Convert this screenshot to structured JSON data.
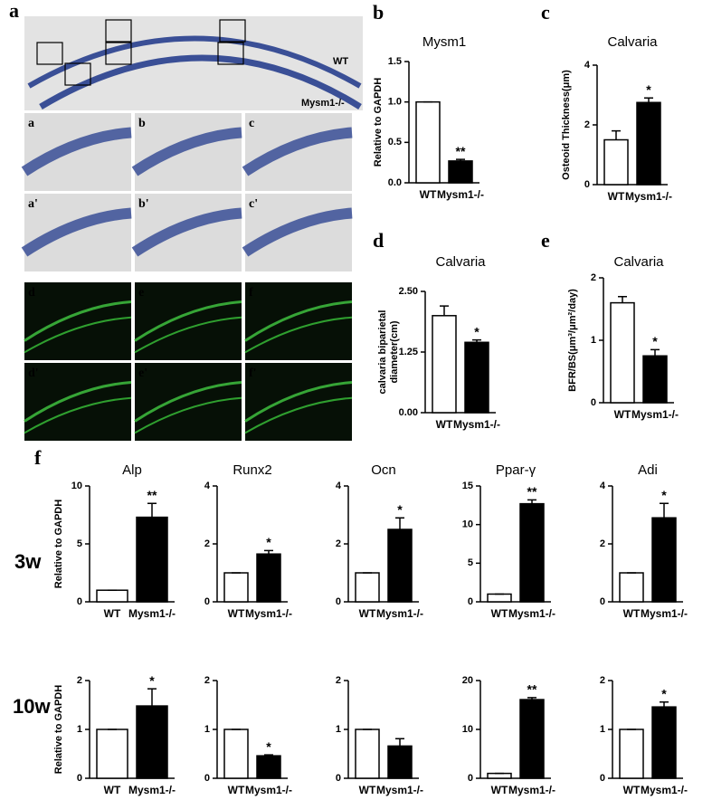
{
  "panel_labels": [
    "a",
    "b",
    "c",
    "d",
    "e",
    "f"
  ],
  "row_labels": [
    "3w",
    "10w"
  ],
  "images": {
    "strip_labels": [
      "WT",
      "Mysm1-/-"
    ],
    "tiles": [
      "a",
      "b",
      "c",
      "a'",
      "b'",
      "c'",
      "d",
      "e",
      "f",
      "d'",
      "e'",
      "f'"
    ]
  },
  "chart_data": [
    {
      "type": "bar",
      "title": "Mysm1",
      "ylabel": "Relative to GAPDH",
      "categories": [
        "WT",
        "Mysm1-/-"
      ],
      "values": [
        1.0,
        0.27
      ],
      "errors": [
        0,
        0.02
      ],
      "colors": [
        "#ffffff",
        "#000000"
      ],
      "annotation": "**",
      "ylim": [
        0,
        1.5
      ],
      "yticks": [
        {
          "value": 0,
          "label": "0.0"
        },
        {
          "value": 0.5,
          "label": "0.5"
        },
        {
          "value": 1,
          "label": "1.0"
        },
        {
          "value": 1.5,
          "label": "1.5"
        }
      ]
    },
    {
      "type": "bar",
      "title": "Calvaria",
      "ylabel": "Osteoid Thickness(μm)",
      "categories": [
        "WT",
        "Mysm1-/-"
      ],
      "values": [
        1.5,
        2.75
      ],
      "errors": [
        0.3,
        0.15
      ],
      "colors": [
        "#ffffff",
        "#000000"
      ],
      "annotation": "*",
      "ylim": [
        0,
        4
      ],
      "yticks": [
        0,
        2,
        4
      ]
    },
    {
      "type": "bar",
      "title": "Calvaria",
      "ylabel": [
        "calvaria biparietal",
        "diameter(cm)"
      ],
      "categories": [
        "WT",
        "Mysm1-/-"
      ],
      "values": [
        2.0,
        1.45
      ],
      "errors": [
        0.2,
        0.05
      ],
      "colors": [
        "#ffffff",
        "#000000"
      ],
      "annotation": "*",
      "ylim": [
        0,
        2.5
      ],
      "yticks": [
        {
          "value": 0,
          "label": "0.00"
        },
        {
          "value": 1.25,
          "label": "1.25"
        },
        {
          "value": 2.5,
          "label": "2.50"
        }
      ]
    },
    {
      "type": "bar",
      "title": "Calvaria",
      "ylabel": "BFR/BS(μm³/μm²/day)",
      "categories": [
        "WT",
        "Mysm1-/-"
      ],
      "values": [
        1.6,
        0.75
      ],
      "errors": [
        0.1,
        0.1
      ],
      "colors": [
        "#ffffff",
        "#000000"
      ],
      "annotation": "*",
      "ylim": [
        0,
        2
      ],
      "yticks": [
        0,
        1,
        2
      ]
    },
    {
      "type": "bar",
      "title": "Alp",
      "ylabel": "Relative to GAPDH",
      "categories": [
        "WT",
        "Mysm1-/-"
      ],
      "values": [
        1,
        7.3
      ],
      "errors": [
        0,
        1.2
      ],
      "colors": [
        "#ffffff",
        "#000000"
      ],
      "annotation": "**",
      "ylim": [
        0,
        10
      ],
      "yticks": [
        0,
        5,
        10
      ]
    },
    {
      "type": "bar",
      "title": "Runx2",
      "categories": [
        "WT",
        "Mysm1-/-"
      ],
      "values": [
        1,
        1.65
      ],
      "errors": [
        0,
        0.12
      ],
      "colors": [
        "#ffffff",
        "#000000"
      ],
      "annotation": "*",
      "ylim": [
        0,
        4
      ],
      "yticks": [
        0,
        2,
        4
      ]
    },
    {
      "type": "bar",
      "title": "Ocn",
      "categories": [
        "WT",
        "Mysm1-/-"
      ],
      "values": [
        1,
        2.5
      ],
      "errors": [
        0,
        0.4
      ],
      "colors": [
        "#ffffff",
        "#000000"
      ],
      "annotation": "*",
      "ylim": [
        0,
        4
      ],
      "yticks": [
        0,
        2,
        4
      ]
    },
    {
      "type": "bar",
      "title": "Ppar-γ",
      "categories": [
        "WT",
        "Mysm1-/-"
      ],
      "values": [
        1,
        12.7
      ],
      "errors": [
        0,
        0.5
      ],
      "colors": [
        "#ffffff",
        "#000000"
      ],
      "annotation": "**",
      "ylim": [
        0,
        15
      ],
      "yticks": [
        0,
        5,
        10,
        15
      ]
    },
    {
      "type": "bar",
      "title": "Adi",
      "categories": [
        "WT",
        "Mysm1-/-"
      ],
      "values": [
        1,
        2.9
      ],
      "errors": [
        0,
        0.5
      ],
      "colors": [
        "#ffffff",
        "#000000"
      ],
      "annotation": "*",
      "ylim": [
        0,
        4
      ],
      "yticks": [
        0,
        2,
        4
      ]
    },
    {
      "type": "bar",
      "ylabel": "Relative to GAPDH",
      "categories": [
        "WT",
        "Mysm1-/-"
      ],
      "values": [
        1,
        1.48
      ],
      "errors": [
        0,
        0.35
      ],
      "colors": [
        "#ffffff",
        "#000000"
      ],
      "annotation": "*",
      "ylim": [
        0,
        2
      ],
      "yticks": [
        0,
        1,
        2
      ]
    },
    {
      "type": "bar",
      "categories": [
        "WT",
        "Mysm1-/-"
      ],
      "values": [
        1,
        0.46
      ],
      "errors": [
        0,
        0.02
      ],
      "colors": [
        "#ffffff",
        "#000000"
      ],
      "annotation": "*",
      "ylim": [
        0,
        2
      ],
      "yticks": [
        0,
        1,
        2
      ]
    },
    {
      "type": "bar",
      "categories": [
        "WT",
        "Mysm1-/-"
      ],
      "values": [
        1,
        0.66
      ],
      "errors": [
        0,
        0.15
      ],
      "colors": [
        "#ffffff",
        "#000000"
      ],
      "ylim": [
        0,
        2
      ],
      "yticks": [
        0,
        1,
        2
      ]
    },
    {
      "type": "bar",
      "categories": [
        "WT",
        "Mysm1-/-"
      ],
      "values": [
        1,
        16.1
      ],
      "errors": [
        0,
        0.4
      ],
      "colors": [
        "#ffffff",
        "#000000"
      ],
      "annotation": "**",
      "ylim": [
        0,
        20
      ],
      "yticks": [
        0,
        10,
        20
      ]
    },
    {
      "type": "bar",
      "categories": [
        "WT",
        "Mysm1-/-"
      ],
      "values": [
        1,
        1.46
      ],
      "errors": [
        0,
        0.1
      ],
      "colors": [
        "#ffffff",
        "#000000"
      ],
      "annotation": "*",
      "ylim": [
        0,
        2
      ],
      "yticks": [
        0,
        1,
        2
      ]
    }
  ]
}
